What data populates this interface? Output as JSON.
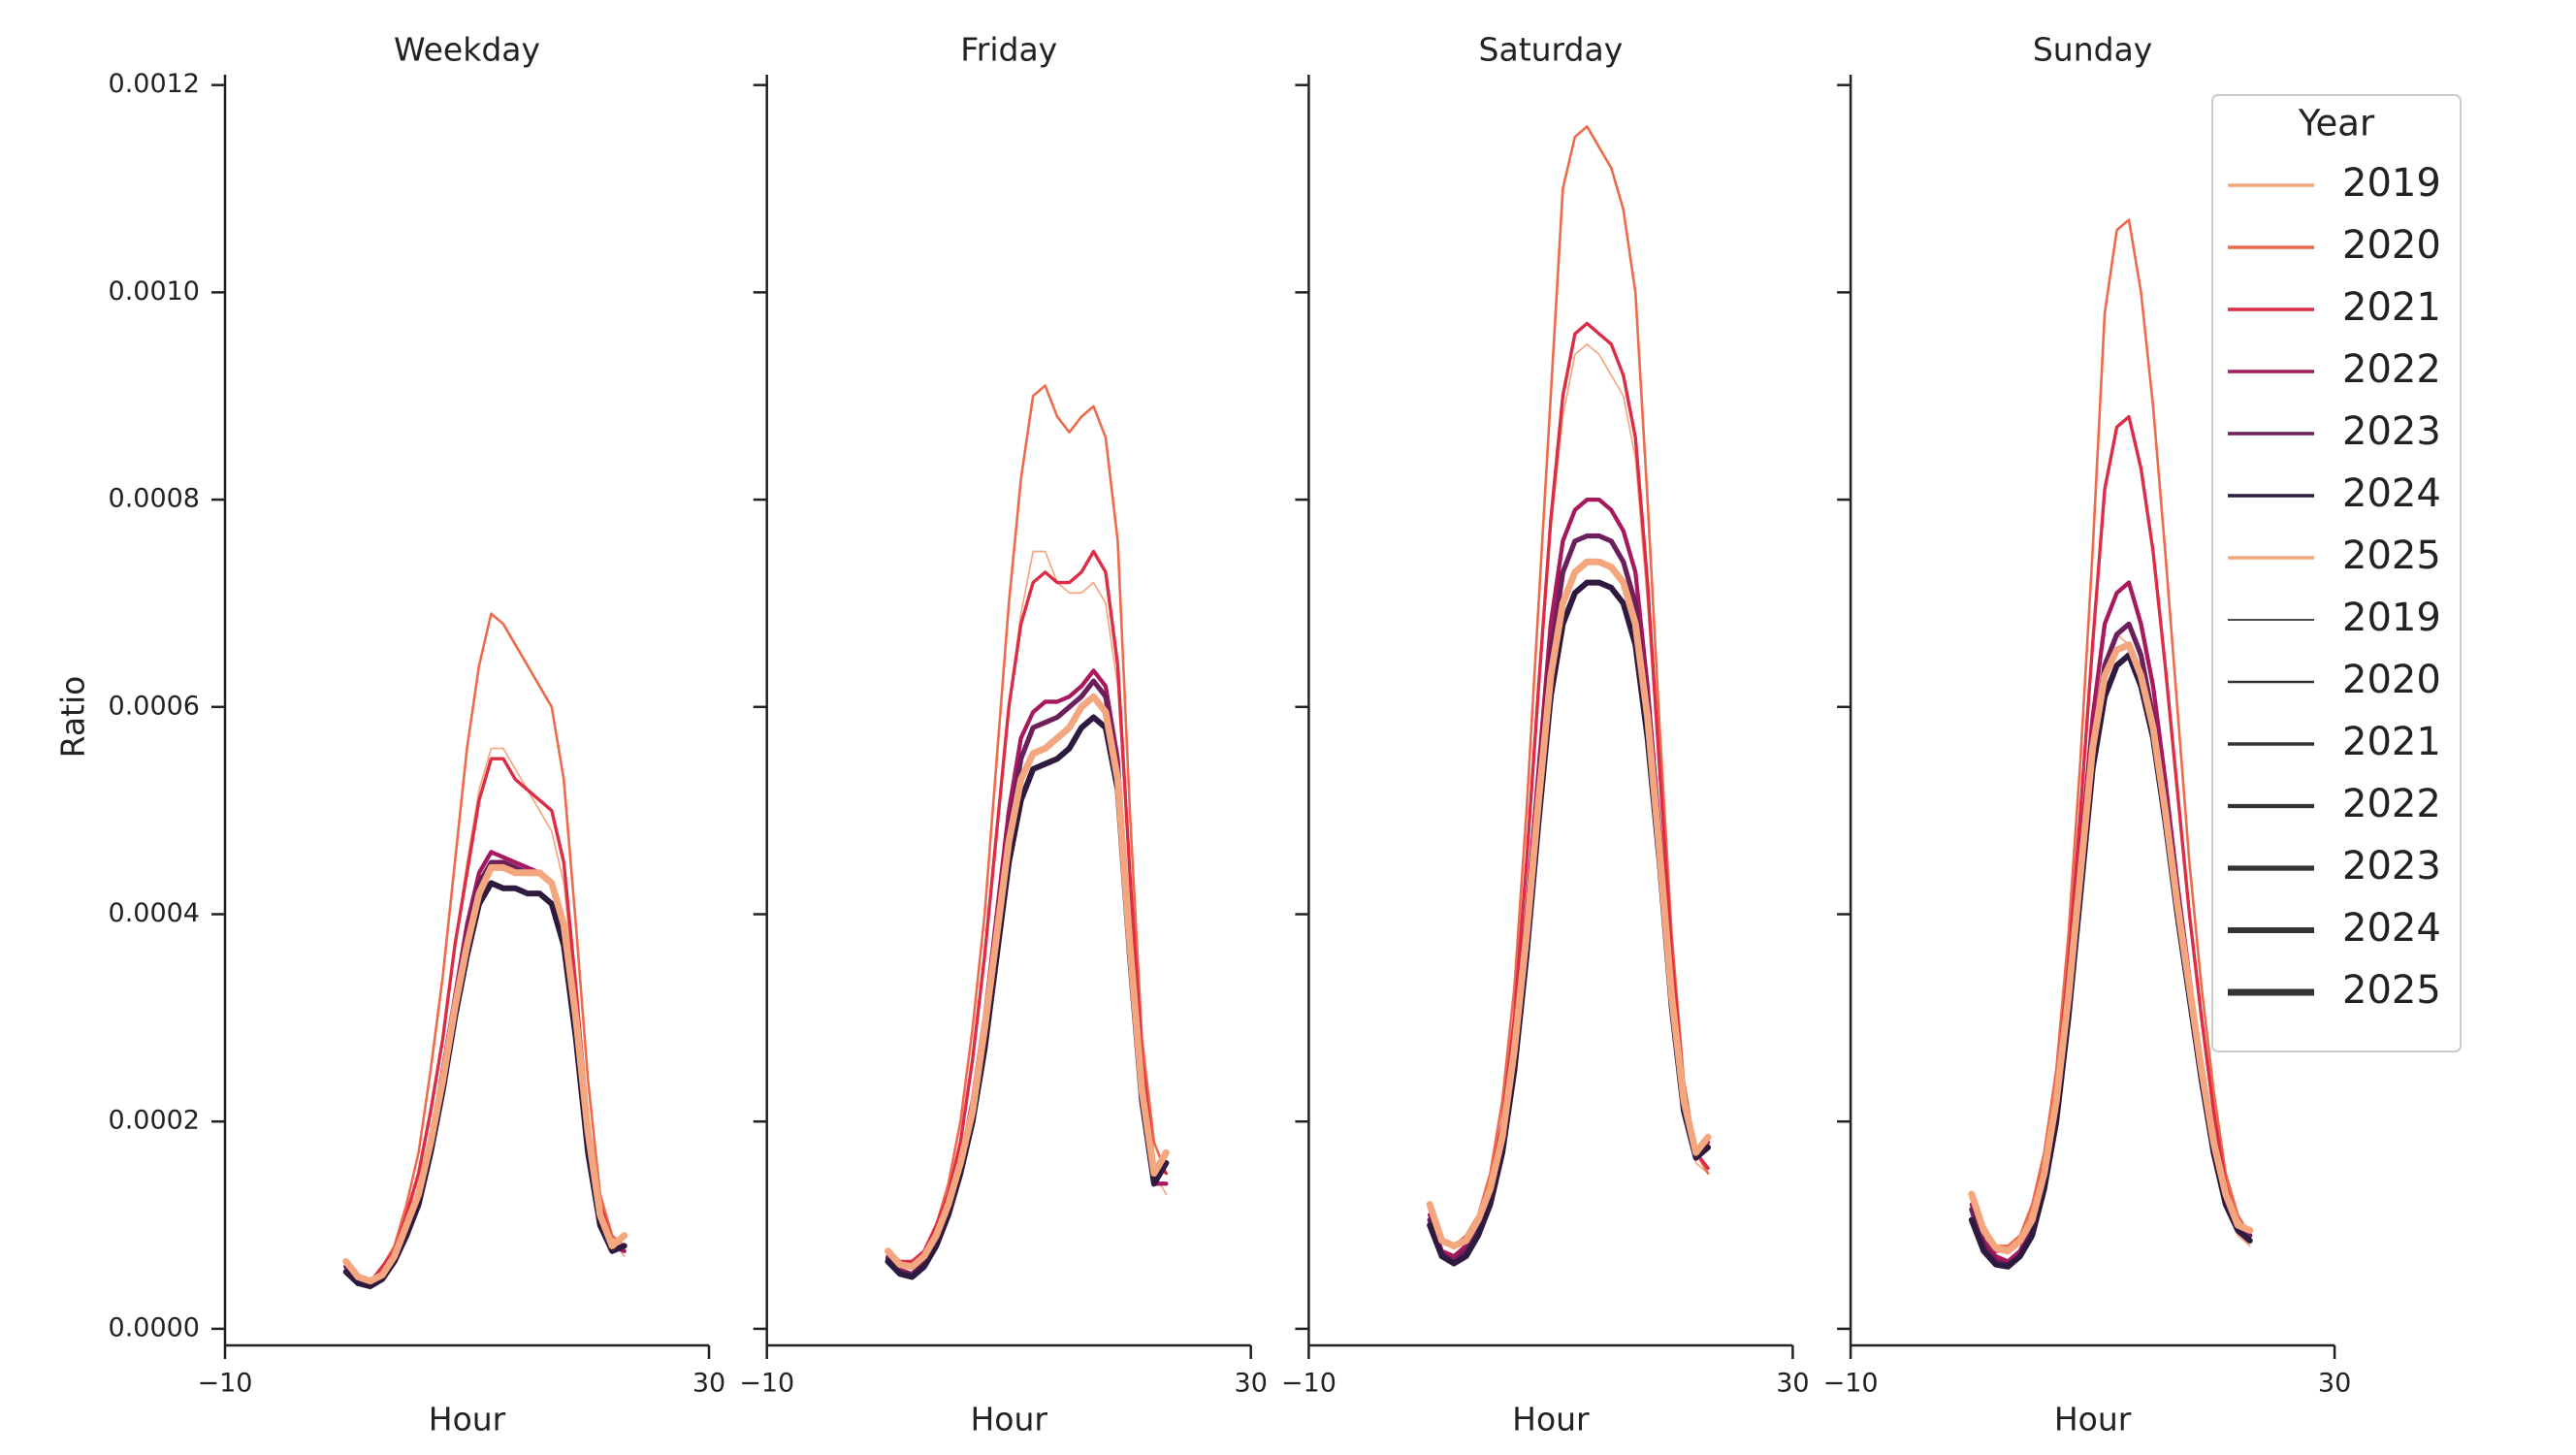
{
  "chart_data": {
    "type": "line",
    "panels": [
      "Weekday",
      "Friday",
      "Saturday",
      "Sunday"
    ],
    "xlabel": "Hour",
    "ylabel": "Ratio",
    "xlim": [
      -10,
      30
    ],
    "xticks": [
      {
        "value": -10,
        "label": "−10"
      },
      30
    ],
    "ylim": [
      -1.6e-05,
      0.00121
    ],
    "yticks": [
      {
        "value": 0,
        "label": "0.0000"
      },
      {
        "value": 0.0002,
        "label": "0.0002"
      },
      {
        "value": 0.0004,
        "label": "0.0004"
      },
      {
        "value": 0.0006,
        "label": "0.0006"
      },
      {
        "value": 0.0008,
        "label": "0.0008"
      },
      {
        "value": 0.001,
        "label": "0.0010"
      },
      {
        "value": 0.0012,
        "label": "0.0012"
      }
    ],
    "legend": {
      "title": "Year",
      "loc": "upper right"
    },
    "x": [
      0,
      1,
      2,
      3,
      4,
      5,
      6,
      7,
      8,
      9,
      10,
      11,
      12,
      13,
      14,
      15,
      16,
      17,
      18,
      19,
      20,
      21,
      22,
      23
    ],
    "series": [
      {
        "name": "2019",
        "color": "#f4a77f",
        "linewidth": 1.7,
        "values": [
          [
            6.5e-05,
            5e-05,
            4.5e-05,
            6e-05,
            7.5e-05,
            0.00011,
            0.00015,
            0.00021,
            0.00028,
            0.00037,
            0.00045,
            0.00052,
            0.00056,
            0.00056,
            0.00054,
            0.00052,
            0.0005,
            0.00048,
            0.00043,
            0.00032,
            0.0002,
            0.00012,
            8.5e-05,
            7e-05
          ],
          [
            7.5e-05,
            6.5e-05,
            6.5e-05,
            7.5e-05,
            0.0001,
            0.00013,
            0.00018,
            0.00026,
            0.00036,
            0.00048,
            0.0006,
            0.00069,
            0.00075,
            0.00075,
            0.00072,
            0.00071,
            0.00071,
            0.00072,
            0.0007,
            0.00062,
            0.00043,
            0.00025,
            0.00015,
            0.00013
          ],
          [
            0.00012,
            8.5e-05,
            8e-05,
            9e-05,
            0.00011,
            0.00014,
            0.0002,
            0.0003,
            0.00044,
            0.00061,
            0.00077,
            0.00088,
            0.00094,
            0.00095,
            0.00094,
            0.00092,
            0.0009,
            0.00084,
            0.0007,
            0.00053,
            0.00035,
            0.00022,
            0.00016,
            0.00015
          ],
          [
            0.00013,
            0.0001,
            8e-05,
            8e-05,
            9e-05,
            0.000115,
            0.00016,
            0.00023,
            0.00034,
            0.00047,
            0.00058,
            0.00064,
            0.00067,
            0.00066,
            0.00063,
            0.00057,
            0.00049,
            0.0004,
            0.00032,
            0.00024,
            0.00017,
            0.00012,
            9e-05,
            8e-05
          ]
        ]
      },
      {
        "name": "2020",
        "color": "#ee6a4a",
        "linewidth": 2.6,
        "values": [
          [
            6.5e-05,
            5e-05,
            4.5e-05,
            6e-05,
            8e-05,
            0.00012,
            0.00017,
            0.00025,
            0.00034,
            0.00045,
            0.00056,
            0.00064,
            0.00069,
            0.00068,
            0.00066,
            0.00064,
            0.00062,
            0.0006,
            0.00053,
            0.00039,
            0.00024,
            0.00013,
            9e-05,
            8e-05
          ],
          [
            7.5e-05,
            6.5e-05,
            6.5e-05,
            7.5e-05,
            0.0001,
            0.00014,
            0.0002,
            0.00029,
            0.0004,
            0.00055,
            0.0007,
            0.00082,
            0.0009,
            0.00091,
            0.00088,
            0.000865,
            0.00088,
            0.00089,
            0.00086,
            0.00076,
            0.0005,
            0.00028,
            0.00018,
            0.00015
          ],
          [
            0.00012,
            8.5e-05,
            8e-05,
            9e-05,
            0.00011,
            0.00015,
            0.00022,
            0.00033,
            0.0005,
            0.0007,
            0.0009,
            0.0011,
            0.00115,
            0.00116,
            0.00114,
            0.00112,
            0.00108,
            0.001,
            0.0008,
            0.00058,
            0.00038,
            0.00024,
            0.00017,
            0.00015
          ],
          [
            0.00013,
            0.0001,
            8e-05,
            8e-05,
            9e-05,
            0.00012,
            0.00017,
            0.00025,
            0.00038,
            0.00055,
            0.00075,
            0.00098,
            0.00106,
            0.00107,
            0.001,
            0.00089,
            0.00075,
            0.0006,
            0.00045,
            0.00033,
            0.00023,
            0.00015,
            0.00011,
            9e-05
          ]
        ]
      },
      {
        "name": "2021",
        "color": "#dd2c45",
        "linewidth": 3.4,
        "values": [
          [
            6.5e-05,
            5e-05,
            4.5e-05,
            6e-05,
            7.5e-05,
            0.00011,
            0.00015,
            0.00021,
            0.00028,
            0.00037,
            0.00044,
            0.00051,
            0.00055,
            0.00055,
            0.00053,
            0.00052,
            0.00051,
            0.0005,
            0.00045,
            0.00033,
            0.0002,
            0.00012,
            8.5e-05,
            7.5e-05
          ],
          [
            7.5e-05,
            6.5e-05,
            6.5e-05,
            7.5e-05,
            0.0001,
            0.00013,
            0.00018,
            0.00026,
            0.00036,
            0.00048,
            0.0006,
            0.00068,
            0.00072,
            0.00073,
            0.00072,
            0.00072,
            0.00073,
            0.00075,
            0.00073,
            0.00064,
            0.00044,
            0.00026,
            0.00016,
            0.00015
          ],
          [
            0.00012,
            8.5e-05,
            7.8e-05,
            8.7e-05,
            0.000105,
            0.00014,
            0.0002,
            0.0003,
            0.00045,
            0.00062,
            0.00078,
            0.0009,
            0.00096,
            0.00097,
            0.00096,
            0.00095,
            0.00092,
            0.00086,
            0.00072,
            0.00054,
            0.00036,
            0.00023,
            0.00017,
            0.000155
          ],
          [
            0.00012,
            9.5e-05,
            7.5e-05,
            7.5e-05,
            8.5e-05,
            0.00011,
            0.00016,
            0.00023,
            0.00035,
            0.0005,
            0.00066,
            0.00081,
            0.00087,
            0.00088,
            0.00083,
            0.00075,
            0.00064,
            0.00052,
            0.0004,
            0.0003,
            0.00021,
            0.00014,
            0.0001,
            8.5e-05
          ]
        ]
      },
      {
        "name": "2022",
        "color": "#a8185d",
        "linewidth": 4.3,
        "values": [
          [
            6e-05,
            4.8e-05,
            4.3e-05,
            5e-05,
            7e-05,
            0.0001,
            0.00013,
            0.00018,
            0.00025,
            0.00032,
            0.00039,
            0.00044,
            0.00046,
            0.000455,
            0.00045,
            0.000445,
            0.00044,
            0.00043,
            0.00039,
            0.0003,
            0.00019,
            0.00011,
            8e-05,
            7.5e-05
          ],
          [
            7e-05,
            5.7e-05,
            5.3e-05,
            6.5e-05,
            9e-05,
            0.00012,
            0.00016,
            0.00022,
            0.0003,
            0.0004,
            0.0005,
            0.00057,
            0.000595,
            0.000605,
            0.000605,
            0.00061,
            0.00062,
            0.000635,
            0.00062,
            0.00055,
            0.00038,
            0.00023,
            0.00014,
            0.00014
          ],
          [
            0.00011,
            7.5e-05,
            7e-05,
            8e-05,
            0.0001,
            0.00013,
            0.00018,
            0.00027,
            0.0004,
            0.00054,
            0.00068,
            0.00076,
            0.00079,
            0.0008,
            0.0008,
            0.00079,
            0.00077,
            0.00073,
            0.00062,
            0.00048,
            0.00033,
            0.00022,
            0.00017,
            0.00018
          ],
          [
            0.00012,
            8.5e-05,
            7e-05,
            6.5e-05,
            7.5e-05,
            0.0001,
            0.00015,
            0.00022,
            0.00033,
            0.00046,
            0.00059,
            0.00068,
            0.00071,
            0.00072,
            0.00068,
            0.00062,
            0.00053,
            0.00043,
            0.00034,
            0.00025,
            0.00018,
            0.00013,
            0.0001,
            9e-05
          ]
        ]
      },
      {
        "name": "2023",
        "color": "#6b1f5b",
        "linewidth": 5.2,
        "values": [
          [
            6e-05,
            4.6e-05,
            4.2e-05,
            5e-05,
            7e-05,
            9.5e-05,
            0.00013,
            0.00018,
            0.00024,
            0.00031,
            0.00038,
            0.00043,
            0.00045,
            0.00045,
            0.000445,
            0.00044,
            0.00044,
            0.00043,
            0.00039,
            0.0003,
            0.00018,
            0.0001,
            7.5e-05,
            8e-05
          ],
          [
            6.8e-05,
            5.5e-05,
            5.2e-05,
            6.3e-05,
            8.5e-05,
            0.000115,
            0.000155,
            0.00021,
            0.00029,
            0.00038,
            0.00048,
            0.00055,
            0.00058,
            0.000585,
            0.00059,
            0.0006,
            0.00061,
            0.000625,
            0.00061,
            0.00054,
            0.00037,
            0.00022,
            0.00014,
            0.00016
          ],
          [
            0.000105,
            7.2e-05,
            6.5e-05,
            7.5e-05,
            9.5e-05,
            0.000125,
            0.000175,
            0.00026,
            0.00038,
            0.00052,
            0.00065,
            0.00073,
            0.00076,
            0.000765,
            0.000765,
            0.00076,
            0.00074,
            0.0007,
            0.0006,
            0.00047,
            0.00032,
            0.00022,
            0.00017,
            0.000175
          ],
          [
            0.000115,
            8e-05,
            6.5e-05,
            6.2e-05,
            7e-05,
            9.5e-05,
            0.00014,
            0.00021,
            0.00031,
            0.00044,
            0.00056,
            0.00064,
            0.00067,
            0.00068,
            0.00065,
            0.00059,
            0.00051,
            0.00042,
            0.00033,
            0.00025,
            0.00018,
            0.00013,
            0.0001,
            9e-05
          ]
        ]
      },
      {
        "name": "2024",
        "color": "#2e1a3f",
        "linewidth": 6,
        "values": [
          [
            5.5e-05,
            4.4e-05,
            4.1e-05,
            4.8e-05,
            6.5e-05,
            9e-05,
            0.00012,
            0.00017,
            0.00023,
            0.0003,
            0.00036,
            0.00041,
            0.00043,
            0.000425,
            0.000425,
            0.00042,
            0.00042,
            0.00041,
            0.00037,
            0.00028,
            0.00017,
            0.0001,
            7.5e-05,
            8e-05
          ],
          [
            6.5e-05,
            5.3e-05,
            5e-05,
            6e-05,
            8e-05,
            0.00011,
            0.00015,
            0.0002,
            0.00027,
            0.00036,
            0.00045,
            0.00051,
            0.00054,
            0.000545,
            0.00055,
            0.00056,
            0.00058,
            0.00059,
            0.00058,
            0.00052,
            0.00036,
            0.00022,
            0.00014,
            0.00016
          ],
          [
            0.0001,
            7e-05,
            6.3e-05,
            7e-05,
            9e-05,
            0.00012,
            0.00017,
            0.00025,
            0.00036,
            0.00049,
            0.00061,
            0.00068,
            0.00071,
            0.00072,
            0.00072,
            0.000715,
            0.0007,
            0.00066,
            0.00057,
            0.00045,
            0.00031,
            0.00021,
            0.000165,
            0.000175
          ],
          [
            0.000105,
            7.5e-05,
            6.2e-05,
            6e-05,
            7e-05,
            9e-05,
            0.000135,
            0.0002,
            0.0003,
            0.00042,
            0.00054,
            0.00061,
            0.00064,
            0.00065,
            0.00062,
            0.00057,
            0.00049,
            0.0004,
            0.00032,
            0.00024,
            0.00017,
            0.00012,
            9.5e-05,
            8.5e-05
          ]
        ]
      },
      {
        "name": "2025",
        "color": "#f4a77f",
        "linewidth": 7,
        "values": [
          [
            6.5e-05,
            5e-05,
            4.6e-05,
            5.2e-05,
            7e-05,
            0.0001,
            0.00013,
            0.00018,
            0.00024,
            0.00031,
            0.00037,
            0.00042,
            0.000445,
            0.000445,
            0.00044,
            0.00044,
            0.00044,
            0.00043,
            0.00039,
            0.0003,
            0.00019,
            0.00011,
            8e-05,
            9e-05
          ],
          [
            7.5e-05,
            6.2e-05,
            6e-05,
            7e-05,
            9e-05,
            0.00012,
            0.00016,
            0.00021,
            0.00029,
            0.00038,
            0.00047,
            0.00053,
            0.000555,
            0.00056,
            0.00057,
            0.00058,
            0.0006,
            0.00061,
            0.000595,
            0.00053,
            0.00037,
            0.00023,
            0.00015,
            0.00017
          ],
          [
            0.00012,
            8.5e-05,
            8e-05,
            8.5e-05,
            0.000105,
            0.000135,
            0.000185,
            0.00027,
            0.00038,
            0.00051,
            0.00063,
            0.0007,
            0.00073,
            0.00074,
            0.00074,
            0.000735,
            0.00072,
            0.00068,
            0.00059,
            0.00046,
            0.00032,
            0.00022,
            0.00017,
            0.000185
          ],
          [
            0.00013,
            9.5e-05,
            7.8e-05,
            7.5e-05,
            8.5e-05,
            0.000105,
            0.00015,
            0.00022,
            0.00032,
            0.00044,
            0.00056,
            0.00063,
            0.000655,
            0.00066,
            0.00063,
            0.00058,
            0.0005,
            0.00041,
            0.00033,
            0.00025,
            0.00018,
            0.00013,
            0.0001,
            9.5e-05
          ]
        ]
      }
    ]
  }
}
